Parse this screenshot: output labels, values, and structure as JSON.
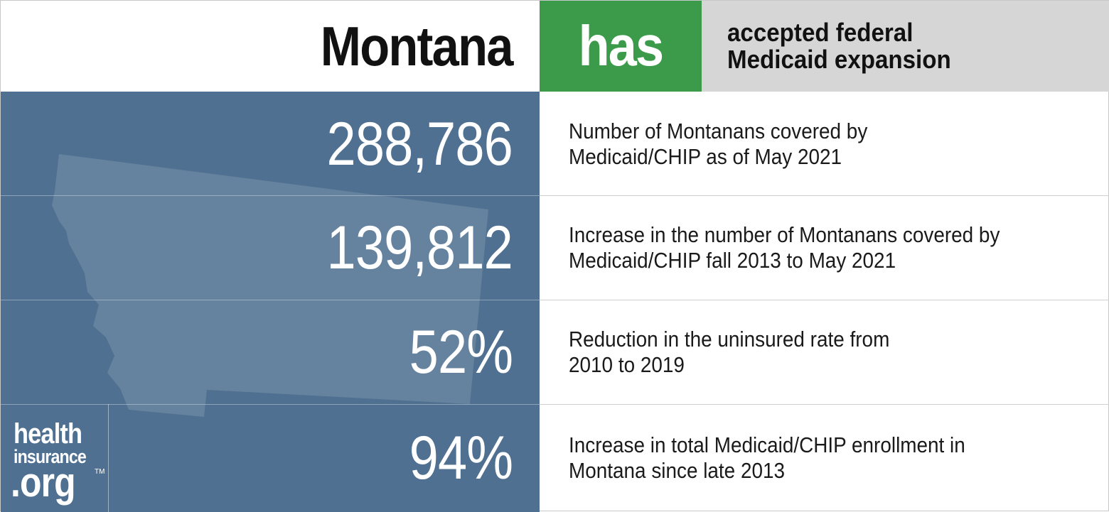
{
  "header": {
    "state": "Montana",
    "status": "has",
    "status_description": "accepted federal\nMedicaid expansion"
  },
  "colors": {
    "status_green": "#3c9b4a",
    "panel_blue": "#4f7090",
    "header_gray": "#d6d6d6"
  },
  "stats": [
    {
      "value": "288,786",
      "description": "Number of Montanans covered by\nMedicaid/CHIP as of May 2021"
    },
    {
      "value": "139,812",
      "description": "Increase in the number of Montanans covered by\nMedicaid/CHIP fall 2013 to May 2021"
    },
    {
      "value": "52%",
      "description": "Reduction in the uninsured rate from\n2010 to 2019"
    },
    {
      "value": "94%",
      "description": "Increase in total Medicaid/CHIP enrollment in\nMontana since late 2013"
    }
  ],
  "logo": {
    "line1": "health",
    "line2": "insurance",
    "line3": ".org",
    "trademark": "TM"
  }
}
